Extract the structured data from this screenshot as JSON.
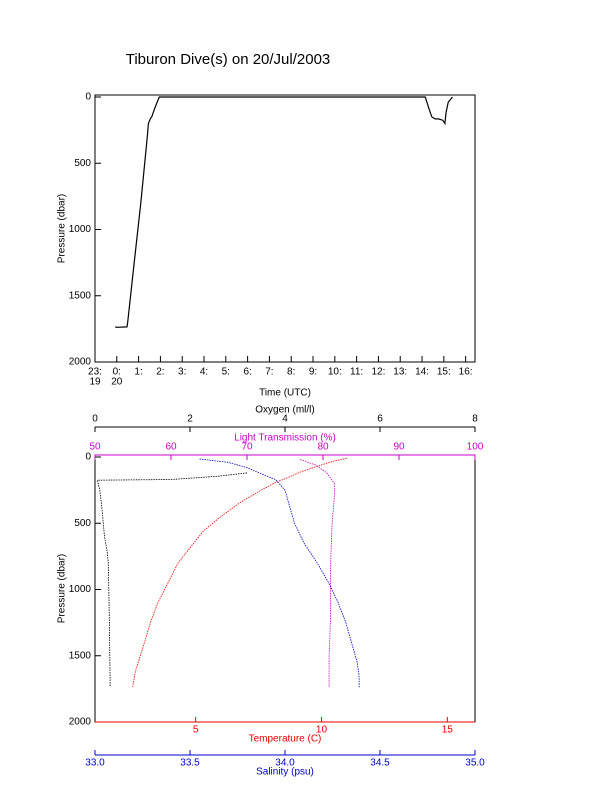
{
  "title": "Tiburon Dive(s) on 20/Jul/2003",
  "chart_data": [
    {
      "type": "line",
      "x_label": "Time (UTC)",
      "y_label": "Pressure (dbar)",
      "x": [
        0.92,
        1.0,
        1.47,
        1.5,
        1.8,
        2.1,
        2.4,
        2.45,
        2.55,
        2.6,
        2.75,
        2.85,
        2.95,
        15.15,
        15.3,
        15.45,
        15.6,
        15.75,
        15.95,
        16.05,
        16.1,
        16.2,
        16.4
      ],
      "series": [
        {
          "color": "#000000",
          "values": [
            1735,
            1738,
            1735,
            1700,
            1250,
            800,
            300,
            200,
            160,
            150,
            80,
            40,
            0,
            0,
            80,
            150,
            165,
            165,
            175,
            200,
            120,
            40,
            0
          ]
        }
      ],
      "xlim": [
        0,
        17.43
      ],
      "xticks": [
        {
          "value": 0,
          "label": "23:"
        },
        {
          "value": 1,
          "label": "0:"
        },
        {
          "value": 2,
          "label": "1:"
        },
        {
          "value": 3,
          "label": "2:"
        },
        {
          "value": 4,
          "label": "3:"
        },
        {
          "value": 5,
          "label": "4:"
        },
        {
          "value": 6,
          "label": "5:"
        },
        {
          "value": 7,
          "label": "6:"
        },
        {
          "value": 8,
          "label": "7:"
        },
        {
          "value": 9,
          "label": "8:"
        },
        {
          "value": 10,
          "label": "9:"
        },
        {
          "value": 11,
          "label": "10:"
        },
        {
          "value": 12,
          "label": "11:"
        },
        {
          "value": 13,
          "label": "12:"
        },
        {
          "value": 14,
          "label": "13:"
        },
        {
          "value": 15,
          "label": "14:"
        },
        {
          "value": 16,
          "label": "15:"
        },
        {
          "value": 17,
          "label": "16:"
        }
      ],
      "x_day_ticks": [
        {
          "value": 0,
          "label": "19"
        },
        {
          "value": 1,
          "label": "20"
        }
      ],
      "ylim": [
        2000,
        -15
      ],
      "yticks": [
        0,
        500,
        1000,
        1500,
        2000
      ]
    },
    {
      "type": "profile",
      "y_label": "Pressure (dbar)",
      "ylim": [
        2000,
        -15
      ],
      "yticks": [
        0,
        500,
        1000,
        1500,
        2000
      ],
      "x_axes": [
        {
          "label": "Oxygen (ml/l)",
          "color": "#000000",
          "position": "top",
          "xlim": [
            0,
            8
          ],
          "xticks": [
            0,
            2,
            4,
            6,
            8
          ]
        },
        {
          "label": "Light Transmission (%)",
          "color": "#cc00cc",
          "position": "top",
          "xlim": [
            50,
            100
          ],
          "xticks": [
            50,
            60,
            70,
            80,
            90,
            100
          ]
        },
        {
          "label": "Temperature (C)",
          "color": "#ee0000",
          "position": "bottom",
          "xlim": [
            1,
            16.1
          ],
          "xticks": [
            5,
            10,
            15
          ]
        },
        {
          "label": "Salinity (psu)",
          "color": "#0000cc",
          "position": "bottom",
          "xlim": [
            33,
            35
          ],
          "xticks": [
            {
              "value": 33,
              "label": "33.0"
            },
            {
              "value": 33.5,
              "label": "33.5"
            },
            {
              "value": 34,
              "label": "34.0"
            },
            {
              "value": 34.5,
              "label": "34.5"
            },
            {
              "value": 35,
              "label": "35.0"
            }
          ]
        }
      ],
      "series": [
        {
          "x_axis": 0,
          "color": "#000000",
          "values": [
            3.2,
            2.6,
            2.0,
            1.6,
            0.05,
            0.1,
            0.15,
            0.2,
            0.25,
            0.28,
            0.3,
            0.32
          ],
          "pressure": [
            120,
            145,
            160,
            170,
            175,
            250,
            400,
            600,
            700,
            800,
            1200,
            1735
          ]
        },
        {
          "x_axis": 1,
          "color": "#cc00cc",
          "values": [
            77,
            79,
            80.5,
            81.5,
            81.5,
            81.2,
            81,
            81,
            80.8,
            80.8
          ],
          "pressure": [
            20,
            60,
            120,
            200,
            300,
            500,
            800,
            1200,
            1500,
            1740
          ]
        },
        {
          "x_axis": 2,
          "color": "#ee0000",
          "values": [
            11.0,
            10.5,
            10.0,
            9.2,
            8.6,
            8.2,
            7.6,
            6.8,
            6.0,
            5.3,
            4.8,
            4.3,
            3.9,
            3.5,
            3.2,
            3.0,
            2.8,
            2.6,
            2.5
          ],
          "pressure": [
            10,
            30,
            60,
            110,
            160,
            190,
            250,
            340,
            450,
            560,
            680,
            800,
            950,
            1100,
            1250,
            1380,
            1500,
            1620,
            1735
          ]
        },
        {
          "x_axis": 3,
          "color": "#0000cc",
          "values": [
            33.55,
            33.7,
            33.8,
            33.88,
            33.95,
            34.0,
            34.02,
            34.05,
            34.1,
            34.17,
            34.23,
            34.28,
            34.32,
            34.35,
            34.38,
            34.39,
            34.39
          ],
          "pressure": [
            15,
            40,
            80,
            130,
            170,
            250,
            350,
            500,
            650,
            800,
            950,
            1100,
            1250,
            1400,
            1550,
            1650,
            1740
          ]
        }
      ]
    }
  ]
}
